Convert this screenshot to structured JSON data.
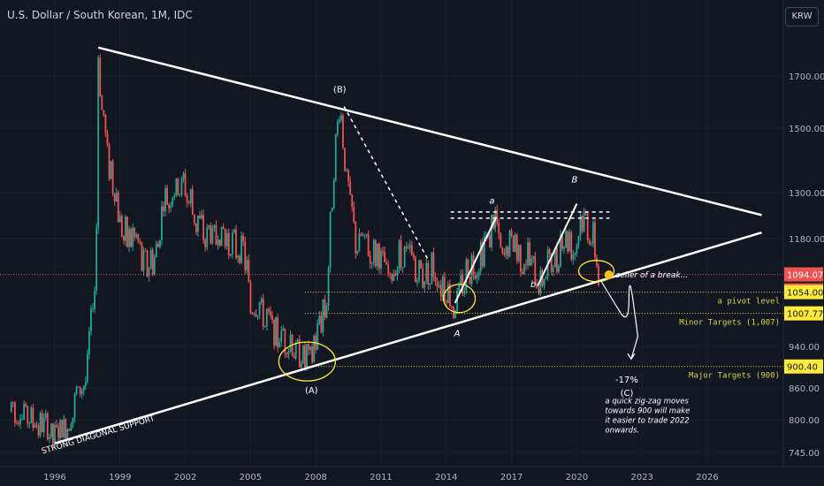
{
  "header": {
    "title": "U.S. Dollar / South Korean, 1M, IDC",
    "currency_button": "KRW"
  },
  "colors": {
    "background": "#131722",
    "up": "#26a69a",
    "down": "#ef5350",
    "trendline": "#ffffff",
    "target_line": "#d6d64a",
    "current_price_line": "#ef5350",
    "highlight": "#ffeb3b"
  },
  "chart_data": {
    "type": "candlestick",
    "x_ticks": [
      "1996",
      "1999",
      "2002",
      "2005",
      "2008",
      "2011",
      "2014",
      "2017",
      "2020",
      "2023",
      "2026"
    ],
    "y_ticks": [
      1700,
      1500,
      1300,
      1180,
      940,
      860,
      800,
      745
    ],
    "y_tick_labels": [
      "1700.00",
      "1500.00",
      "1300.00",
      "1180.00",
      "940.00",
      "860.00",
      "800.00",
      "745.00"
    ],
    "price_tags": [
      {
        "label": "1094.07",
        "kind": "current",
        "value": 1094.07
      },
      {
        "label": "16d 13h",
        "kind": "countdown"
      },
      {
        "label": "1054.00",
        "kind": "level",
        "value": 1054.0
      },
      {
        "label": "1007.77",
        "kind": "level",
        "value": 1007.77
      },
      {
        "label": "900.40",
        "kind": "level",
        "value": 900.4
      }
    ],
    "price_path": [
      [
        1994.0,
        815
      ],
      [
        1994.8,
        812
      ],
      [
        1995.5,
        790
      ],
      [
        1996.0,
        775
      ],
      [
        1996.5,
        785
      ],
      [
        1997.0,
        840
      ],
      [
        1997.5,
        905
      ],
      [
        1997.9,
        1120
      ],
      [
        1998.0,
        1800
      ],
      [
        1998.15,
        1550
      ],
      [
        1998.5,
        1380
      ],
      [
        1999.0,
        1220
      ],
      [
        1999.5,
        1180
      ],
      [
        2000.0,
        1130
      ],
      [
        2000.6,
        1115
      ],
      [
        2001.0,
        1270
      ],
      [
        2001.5,
        1310
      ],
      [
        2002.0,
        1320
      ],
      [
        2002.6,
        1210
      ],
      [
        2003.0,
        1190
      ],
      [
        2003.5,
        1195
      ],
      [
        2004.0,
        1175
      ],
      [
        2004.7,
        1150
      ],
      [
        2005.0,
        1030
      ],
      [
        2005.5,
        1010
      ],
      [
        2006.0,
        975
      ],
      [
        2006.5,
        955
      ],
      [
        2007.0,
        935
      ],
      [
        2007.5,
        920
      ],
      [
        2007.8,
        915
      ],
      [
        2008.2,
        980
      ],
      [
        2008.5,
        1050
      ],
      [
        2008.8,
        1350
      ],
      [
        2009.1,
        1570
      ],
      [
        2009.4,
        1350
      ],
      [
        2009.8,
        1170
      ],
      [
        2010.3,
        1160
      ],
      [
        2010.7,
        1140
      ],
      [
        2011.0,
        1125
      ],
      [
        2011.4,
        1075
      ],
      [
        2011.8,
        1150
      ],
      [
        2012.3,
        1135
      ],
      [
        2012.8,
        1090
      ],
      [
        2013.4,
        1115
      ],
      [
        2013.9,
        1060
      ],
      [
        2014.4,
        1025
      ],
      [
        2014.9,
        1100
      ],
      [
        2015.4,
        1115
      ],
      [
        2015.9,
        1170
      ],
      [
        2016.2,
        1230
      ],
      [
        2016.6,
        1110
      ],
      [
        2016.9,
        1180
      ],
      [
        2017.4,
        1130
      ],
      [
        2017.8,
        1135
      ],
      [
        2018.2,
        1070
      ],
      [
        2018.6,
        1120
      ],
      [
        2019.0,
        1125
      ],
      [
        2019.4,
        1180
      ],
      [
        2019.8,
        1160
      ],
      [
        2020.2,
        1220
      ],
      [
        2020.5,
        1200
      ],
      [
        2020.8,
        1180
      ],
      [
        2021.0,
        1094
      ]
    ],
    "trendlines": [
      {
        "label": "",
        "points": [
          [
            1998.0,
            1820
          ],
          [
            2028.5,
            1240
          ]
        ]
      },
      {
        "label": "STRONG DIAGONAL SUPPORT",
        "points": [
          [
            1996.0,
            760
          ],
          [
            2028.5,
            1195
          ]
        ]
      }
    ],
    "dashed_lines": [
      {
        "points": [
          [
            2009.3,
            1580
          ],
          [
            2013.2,
            1125
          ]
        ]
      },
      {
        "points": [
          [
            2014.2,
            1248
          ],
          [
            2021.5,
            1248
          ]
        ]
      },
      {
        "points": [
          [
            2014.2,
            1232
          ],
          [
            2021.5,
            1232
          ]
        ]
      }
    ],
    "impulse_legs": [
      {
        "points": [
          [
            2014.4,
            1030
          ],
          [
            2016.3,
            1235
          ]
        ]
      },
      {
        "points": [
          [
            2018.2,
            1068
          ],
          [
            2020.0,
            1270
          ]
        ]
      }
    ],
    "horizontal_levels": [
      {
        "value": 1094.07,
        "label": "",
        "style": "current"
      },
      {
        "value": 1054.0,
        "label": "a pivot level"
      },
      {
        "value": 1007.77,
        "label": "Minor Targets (1,007)"
      },
      {
        "value": 900.4,
        "label": "Major Targets (900)"
      }
    ],
    "wave_labels": [
      {
        "text": "(B)",
        "x": 2009.1,
        "y": 1635
      },
      {
        "text": "(A)",
        "x": 2007.8,
        "y": 850
      },
      {
        "text": "a",
        "x": 2016.1,
        "y": 1270
      },
      {
        "text": "A",
        "x": 2014.5,
        "y": 960
      },
      {
        "text": "B",
        "x": 2019.9,
        "y": 1330
      },
      {
        "text": "b",
        "x": 2018.0,
        "y": 1065
      },
      {
        "text": "-17%",
        "x": 2022.3,
        "y": 870
      },
      {
        "text": "(C)",
        "x": 2022.3,
        "y": 845
      }
    ],
    "highlight_ellipses": [
      {
        "x": 2007.6,
        "y": 910
      },
      {
        "x": 2014.6,
        "y": 1040
      },
      {
        "x": 2020.9,
        "y": 1102
      }
    ],
    "notes": [
      {
        "text": "seller of a break...",
        "x": 2021.8,
        "y": 1087
      },
      {
        "lines": [
          "a quick zig-zag moves",
          "towards 900 will make",
          "it easier to trade 2022",
          "onwards."
        ],
        "x": 2021.3,
        "y": 830
      }
    ],
    "projection_path": [
      [
        2021.1,
        1080
      ],
      [
        2021.6,
        1040
      ],
      [
        2022.0,
        1010
      ],
      [
        2022.4,
        1040
      ],
      [
        2022.6,
        1030
      ],
      [
        2022.8,
        960
      ],
      [
        2022.5,
        915
      ]
    ]
  }
}
